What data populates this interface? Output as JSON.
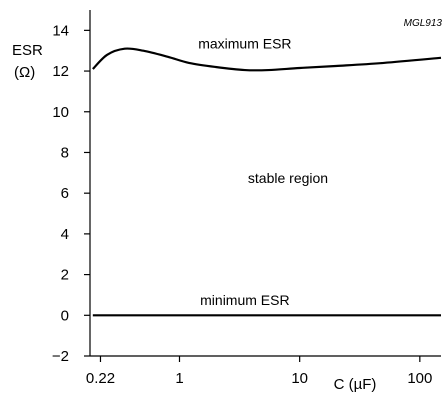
{
  "chart_data": {
    "type": "line",
    "reference": "MGL913",
    "ylabel_line1": "ESR",
    "ylabel_line2": "(Ω)",
    "xlabel": "C (µF)",
    "x_scale": "log",
    "xlim": [
      0.18,
      150
    ],
    "ylim": [
      -2,
      15
    ],
    "x_ticks": [
      0.22,
      1,
      10,
      100
    ],
    "x_tick_labels": [
      "0.22",
      "1",
      "10",
      "100"
    ],
    "y_ticks": [
      -2,
      0,
      2,
      4,
      6,
      8,
      10,
      12,
      14
    ],
    "y_tick_labels": [
      "−2",
      "0",
      "2",
      "4",
      "6",
      "8",
      "10",
      "12",
      "14"
    ],
    "grid": false,
    "series": [
      {
        "name": "maximum ESR",
        "color": "#000000",
        "x": [
          0.19,
          0.25,
          0.35,
          0.5,
          0.8,
          1.2,
          2,
          3.5,
          5.5,
          10,
          20,
          50,
          150
        ],
        "y": [
          12.1,
          12.8,
          13.1,
          13.0,
          12.7,
          12.4,
          12.2,
          12.05,
          12.05,
          12.15,
          12.25,
          12.4,
          12.65
        ]
      },
      {
        "name": "minimum ESR",
        "color": "#000000",
        "x": [
          0.19,
          150
        ],
        "y": [
          0.0,
          0.0
        ]
      }
    ],
    "annotations": [
      {
        "id": "maximum-esr",
        "text": "maximum ESR",
        "x": 3.5,
        "y": 13.1
      },
      {
        "id": "stable-region",
        "text": "stable region",
        "x": 8,
        "y": 6.5
      },
      {
        "id": "minimum-esr",
        "text": "minimum ESR",
        "x": 3.5,
        "y": 0.5
      }
    ]
  }
}
